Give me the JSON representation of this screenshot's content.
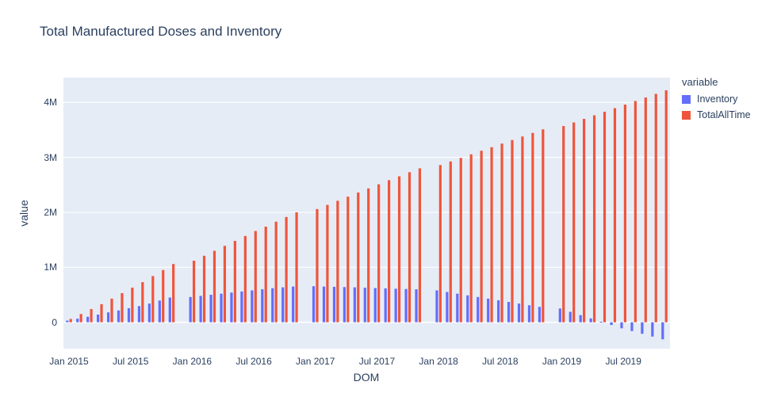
{
  "chart_data": {
    "type": "bar",
    "title": "Total Manufactured Doses and Inventory",
    "xlabel": "DOM",
    "ylabel": "value",
    "legend_title": "variable",
    "plot_bg": "#e5ecf6",
    "grid_color": "#ffffff",
    "font_color": "#2a3f5f",
    "ylim": [
      -480000,
      4450000
    ],
    "x": [
      "2015-01",
      "2015-02",
      "2015-03",
      "2015-04",
      "2015-05",
      "2015-06",
      "2015-07",
      "2015-08",
      "2015-09",
      "2015-10",
      "2015-11",
      "2016-01",
      "2016-02",
      "2016-03",
      "2016-04",
      "2016-05",
      "2016-06",
      "2016-07",
      "2016-08",
      "2016-09",
      "2016-10",
      "2016-11",
      "2017-01",
      "2017-02",
      "2017-03",
      "2017-04",
      "2017-05",
      "2017-06",
      "2017-07",
      "2017-08",
      "2017-09",
      "2017-10",
      "2017-11",
      "2018-01",
      "2018-02",
      "2018-03",
      "2018-04",
      "2018-05",
      "2018-06",
      "2018-07",
      "2018-08",
      "2018-09",
      "2018-10",
      "2018-11",
      "2019-01",
      "2019-02",
      "2019-03",
      "2019-04",
      "2019-05",
      "2019-06",
      "2019-07",
      "2019-08",
      "2019-09",
      "2019-10",
      "2019-11"
    ],
    "series": [
      {
        "name": "Inventory",
        "color": "#636efa",
        "values": [
          30000,
          65000,
          100000,
          140000,
          180000,
          215000,
          255000,
          295000,
          340000,
          395000,
          450000,
          460000,
          480000,
          500000,
          520000,
          540000,
          560000,
          580000,
          600000,
          620000,
          635000,
          650000,
          655000,
          650000,
          645000,
          640000,
          635000,
          628000,
          622000,
          616000,
          610000,
          605000,
          600000,
          580000,
          550000,
          520000,
          490000,
          460000,
          430000,
          400000,
          370000,
          340000,
          310000,
          280000,
          250000,
          190000,
          130000,
          70000,
          10000,
          -50000,
          -110000,
          -160000,
          -210000,
          -260000,
          -310000
        ]
      },
      {
        "name": "TotalAllTime",
        "color": "#ef553b",
        "values": [
          60000,
          150000,
          240000,
          330000,
          430000,
          530000,
          630000,
          730000,
          840000,
          950000,
          1060000,
          1120000,
          1210000,
          1300000,
          1390000,
          1480000,
          1570000,
          1660000,
          1740000,
          1830000,
          1915000,
          2000000,
          2060000,
          2135000,
          2210000,
          2285000,
          2360000,
          2435000,
          2510000,
          2585000,
          2655000,
          2730000,
          2800000,
          2860000,
          2925000,
          2990000,
          3055000,
          3120000,
          3185000,
          3250000,
          3315000,
          3380000,
          3445000,
          3510000,
          3570000,
          3635000,
          3700000,
          3765000,
          3830000,
          3895000,
          3960000,
          4025000,
          4090000,
          4155000,
          4220000
        ]
      }
    ],
    "yticks": [
      {
        "v": 0,
        "label": "0"
      },
      {
        "v": 1000000,
        "label": "1M"
      },
      {
        "v": 2000000,
        "label": "2M"
      },
      {
        "v": 3000000,
        "label": "3M"
      },
      {
        "v": 4000000,
        "label": "4M"
      }
    ],
    "xticks": [
      {
        "m": "2015-01",
        "label": "Jan 2015"
      },
      {
        "m": "2015-07",
        "label": "Jul 2015"
      },
      {
        "m": "2016-01",
        "label": "Jan 2016"
      },
      {
        "m": "2016-07",
        "label": "Jul 2016"
      },
      {
        "m": "2017-01",
        "label": "Jan 2017"
      },
      {
        "m": "2017-07",
        "label": "Jul 2017"
      },
      {
        "m": "2018-01",
        "label": "Jan 2018"
      },
      {
        "m": "2018-07",
        "label": "Jul 2018"
      },
      {
        "m": "2019-01",
        "label": "Jan 2019"
      },
      {
        "m": "2019-07",
        "label": "Jul 2019"
      }
    ],
    "legend_position": "top-right",
    "grid": true
  }
}
